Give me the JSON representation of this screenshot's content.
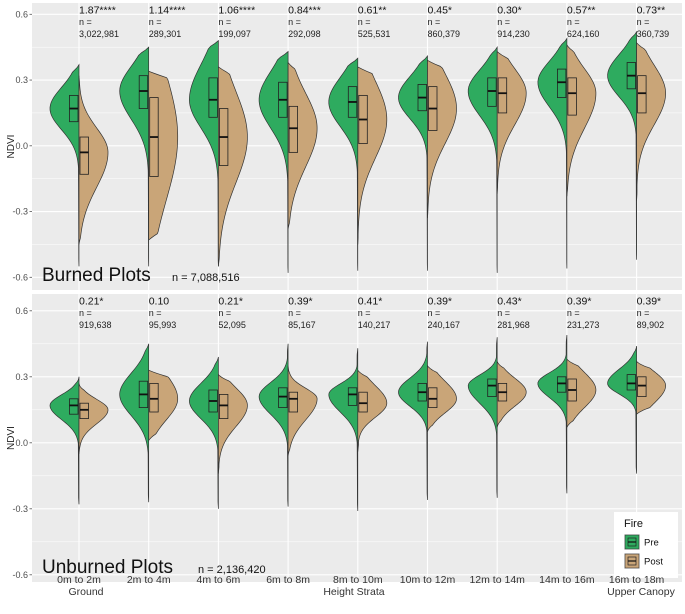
{
  "chart_data": [
    {
      "type": "violin",
      "panel_title": "Burned Plots",
      "total_label": "n = 7,088,516",
      "ylabel": "NDVI",
      "ylim": [
        -0.6,
        0.6
      ],
      "yticks": [
        "0.6",
        "0.3",
        "0.0",
        "-0.3",
        "-0.6"
      ],
      "categories": [
        "0m to 2m",
        "2m to 4m",
        "4m to 6m",
        "6m to 8m",
        "8m to 10m",
        "10m to 12m",
        "12m to 14m",
        "14m to 16m",
        "16m to 18m"
      ],
      "effect_labels": [
        "1.87****",
        "1.14****",
        "1.06****",
        "0.84***",
        "0.61**",
        "0.45*",
        "0.30*",
        "0.57**",
        "0.73**"
      ],
      "n_labels": [
        "3,022,981",
        "289,301",
        "199,097",
        "292,098",
        "525,531",
        "860,379",
        "914,230",
        "624,160",
        "360,739"
      ],
      "n_prefix": "n =",
      "pre": {
        "median": [
          0.17,
          0.25,
          0.21,
          0.21,
          0.2,
          0.22,
          0.25,
          0.29,
          0.32
        ],
        "q1": [
          0.11,
          0.17,
          0.13,
          0.13,
          0.13,
          0.16,
          0.18,
          0.22,
          0.26
        ],
        "q3": [
          0.23,
          0.32,
          0.31,
          0.29,
          0.27,
          0.28,
          0.31,
          0.35,
          0.38
        ],
        "min": [
          -0.55,
          -0.55,
          -0.55,
          -0.58,
          -0.57,
          -0.57,
          -0.58,
          -0.56,
          -0.52
        ],
        "max": [
          0.37,
          0.45,
          0.48,
          0.43,
          0.4,
          0.41,
          0.45,
          0.49,
          0.52
        ]
      },
      "post": {
        "median": [
          -0.03,
          0.04,
          0.04,
          0.08,
          0.12,
          0.17,
          0.24,
          0.24,
          0.24
        ],
        "q1": [
          -0.13,
          -0.14,
          -0.09,
          -0.03,
          0.01,
          0.07,
          0.15,
          0.14,
          0.15
        ],
        "q3": [
          0.04,
          0.22,
          0.17,
          0.18,
          0.23,
          0.27,
          0.31,
          0.31,
          0.32
        ],
        "min": [
          -0.45,
          -0.43,
          -0.55,
          -0.38,
          -0.45,
          -0.33,
          -0.22,
          -0.23,
          -0.25
        ],
        "max": [
          0.32,
          0.34,
          0.36,
          0.38,
          0.36,
          0.39,
          0.43,
          0.46,
          0.47
        ]
      }
    },
    {
      "type": "violin",
      "panel_title": "Unburned Plots",
      "total_label": "n = 2,136,420",
      "ylabel": "NDVI",
      "ylim": [
        -0.6,
        0.6
      ],
      "yticks": [
        "0.6",
        "0.3",
        "0.0",
        "-0.3",
        "-0.6"
      ],
      "categories": [
        "0m to 2m",
        "2m to 4m",
        "4m to 6m",
        "6m to 8m",
        "8m to 10m",
        "10m to 12m",
        "12m to 14m",
        "14m to 16m",
        "16m to 18m"
      ],
      "effect_labels": [
        "0.21*",
        "0.10",
        "0.21*",
        "0.39*",
        "0.41*",
        "0.39*",
        "0.43*",
        "0.39*",
        "0.39*"
      ],
      "n_labels": [
        "919,638",
        "95,993",
        "52,095",
        "85,167",
        "140,217",
        "240,167",
        "281,968",
        "231,273",
        "89,902"
      ],
      "n_prefix": "n =",
      "pre": {
        "median": [
          0.17,
          0.22,
          0.19,
          0.21,
          0.22,
          0.23,
          0.26,
          0.27,
          0.27
        ],
        "q1": [
          0.13,
          0.16,
          0.14,
          0.16,
          0.17,
          0.19,
          0.21,
          0.23,
          0.24
        ],
        "q3": [
          0.2,
          0.28,
          0.24,
          0.25,
          0.25,
          0.27,
          0.29,
          0.3,
          0.31
        ],
        "min": [
          -0.28,
          -0.27,
          -0.3,
          -0.29,
          -0.31,
          -0.26,
          -0.25,
          -0.23,
          -0.14
        ],
        "max": [
          0.3,
          0.45,
          0.39,
          0.45,
          0.43,
          0.46,
          0.48,
          0.49,
          0.44
        ]
      },
      "post": {
        "median": [
          0.15,
          0.2,
          0.17,
          0.2,
          0.18,
          0.2,
          0.23,
          0.24,
          0.26
        ],
        "q1": [
          0.11,
          0.14,
          0.11,
          0.14,
          0.14,
          0.16,
          0.19,
          0.19,
          0.21
        ],
        "q3": [
          0.18,
          0.27,
          0.22,
          0.23,
          0.23,
          0.25,
          0.27,
          0.29,
          0.3
        ],
        "min": [
          -0.05,
          0.01,
          -0.14,
          -0.06,
          -0.04,
          0.05,
          0.07,
          0.07,
          0.13
        ],
        "max": [
          0.27,
          0.33,
          0.31,
          0.35,
          0.33,
          0.35,
          0.37,
          0.38,
          0.37
        ]
      }
    }
  ],
  "x_axis": {
    "title": "Height Strata",
    "ground_label": "Ground",
    "canopy_label": "Upper Canopy"
  },
  "legend": {
    "title": "Fire",
    "items": [
      {
        "label": "Pre",
        "color": "#2eab5f"
      },
      {
        "label": "Post",
        "color": "#c9a578"
      }
    ]
  },
  "colors": {
    "panel_bg": "#ebebeb",
    "grid": "#ffffff",
    "pre": "#2eab5f",
    "post": "#c9a578",
    "outline": "#333333"
  }
}
